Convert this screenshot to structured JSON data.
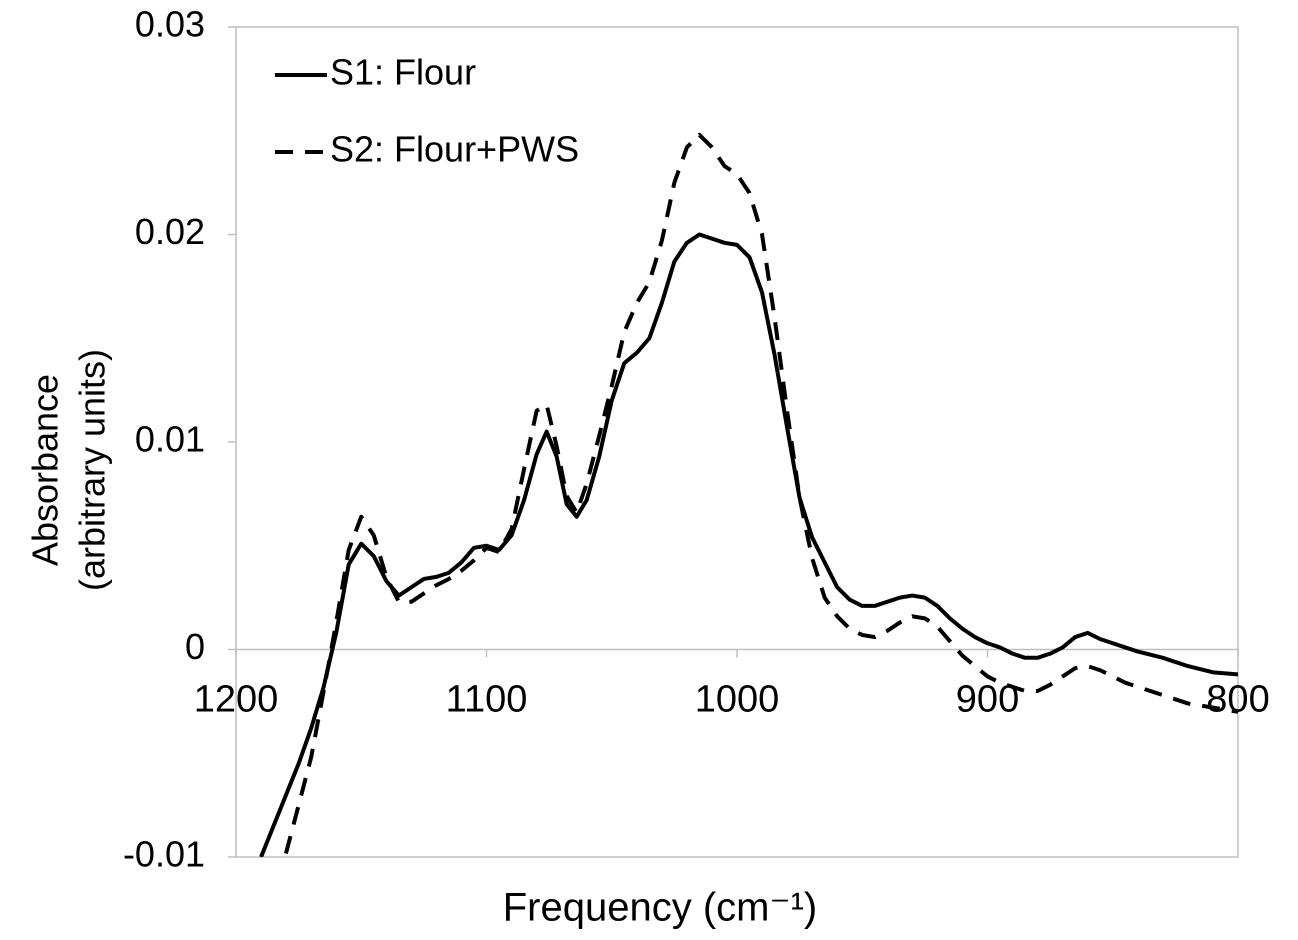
{
  "chart_data": {
    "type": "line",
    "x_label": "Frequency (cm⁻¹)",
    "y_label": [
      "Absorbance",
      "(arbitrary units)"
    ],
    "xlim": [
      1200,
      800
    ],
    "xticks": [
      1200,
      1100,
      1000,
      900,
      800
    ],
    "ylim": [
      -0.01,
      0.03
    ],
    "yticks": [
      -0.01,
      0,
      0.01,
      0.02,
      0.03
    ],
    "legend": "top-left",
    "x": [
      1190,
      1180,
      1175,
      1170,
      1165,
      1160,
      1155,
      1150,
      1145,
      1140,
      1135,
      1130,
      1125,
      1120,
      1115,
      1110,
      1105,
      1100,
      1095,
      1090,
      1085,
      1080,
      1076,
      1072,
      1068,
      1064,
      1060,
      1055,
      1050,
      1045,
      1040,
      1035,
      1030,
      1025,
      1020,
      1015,
      1010,
      1005,
      1000,
      995,
      990,
      985,
      980,
      975,
      970,
      965,
      960,
      955,
      950,
      945,
      940,
      935,
      930,
      925,
      920,
      915,
      910,
      905,
      900,
      895,
      890,
      885,
      880,
      875,
      870,
      865,
      860,
      855,
      850,
      845,
      840,
      830,
      820,
      810,
      800
    ],
    "series": [
      {
        "name": "S1: Flour",
        "color": "#000000",
        "dash": "solid",
        "values": [
          -0.01,
          -0.007,
          -0.0055,
          -0.0038,
          -0.0018,
          0.0008,
          0.0041,
          0.0051,
          0.0045,
          0.0033,
          0.0026,
          0.003,
          0.0034,
          0.0035,
          0.0037,
          0.0042,
          0.0049,
          0.005,
          0.0048,
          0.0055,
          0.0072,
          0.0094,
          0.0105,
          0.0093,
          0.007,
          0.0064,
          0.0072,
          0.0093,
          0.012,
          0.0138,
          0.0143,
          0.015,
          0.0167,
          0.0187,
          0.0196,
          0.02,
          0.0198,
          0.0196,
          0.0195,
          0.0189,
          0.0172,
          0.0142,
          0.0107,
          0.0073,
          0.0054,
          0.0042,
          0.003,
          0.0024,
          0.0021,
          0.0021,
          0.0023,
          0.0025,
          0.0026,
          0.0025,
          0.0021,
          0.0015,
          0.001,
          0.0006,
          0.0003,
          0.0001,
          -0.0002,
          -0.0004,
          -0.0004,
          -0.0002,
          0.0001,
          0.0006,
          0.0008,
          0.0005,
          0.0003,
          0.0001,
          -0.0001,
          -0.0004,
          -0.0008,
          -0.0011,
          -0.0012
        ]
      },
      {
        "name": "S2: Flour+PWS",
        "color": "#000000",
        "dash": "dashed",
        "values": [
          -0.014,
          -0.0098,
          -0.0075,
          -0.0052,
          -0.002,
          0.0013,
          0.0048,
          0.0064,
          0.0055,
          0.0035,
          0.0023,
          0.0023,
          0.0027,
          0.0031,
          0.0034,
          0.0038,
          0.0043,
          0.0049,
          0.0047,
          0.0058,
          0.0087,
          0.0115,
          0.0118,
          0.0098,
          0.0074,
          0.0066,
          0.008,
          0.0103,
          0.0127,
          0.0153,
          0.0167,
          0.0177,
          0.0197,
          0.0225,
          0.0242,
          0.0248,
          0.0242,
          0.0233,
          0.0229,
          0.022,
          0.02,
          0.016,
          0.0115,
          0.0073,
          0.0044,
          0.0025,
          0.0016,
          0.001,
          0.0007,
          0.0006,
          0.0009,
          0.0013,
          0.0016,
          0.0015,
          0.0011,
          0.0004,
          -0.0003,
          -0.0008,
          -0.0013,
          -0.0016,
          -0.0018,
          -0.002,
          -0.002,
          -0.0017,
          -0.0013,
          -0.0009,
          -0.0008,
          -0.001,
          -0.0013,
          -0.0016,
          -0.0018,
          -0.0022,
          -0.0026,
          -0.0028,
          -0.003
        ]
      }
    ]
  }
}
